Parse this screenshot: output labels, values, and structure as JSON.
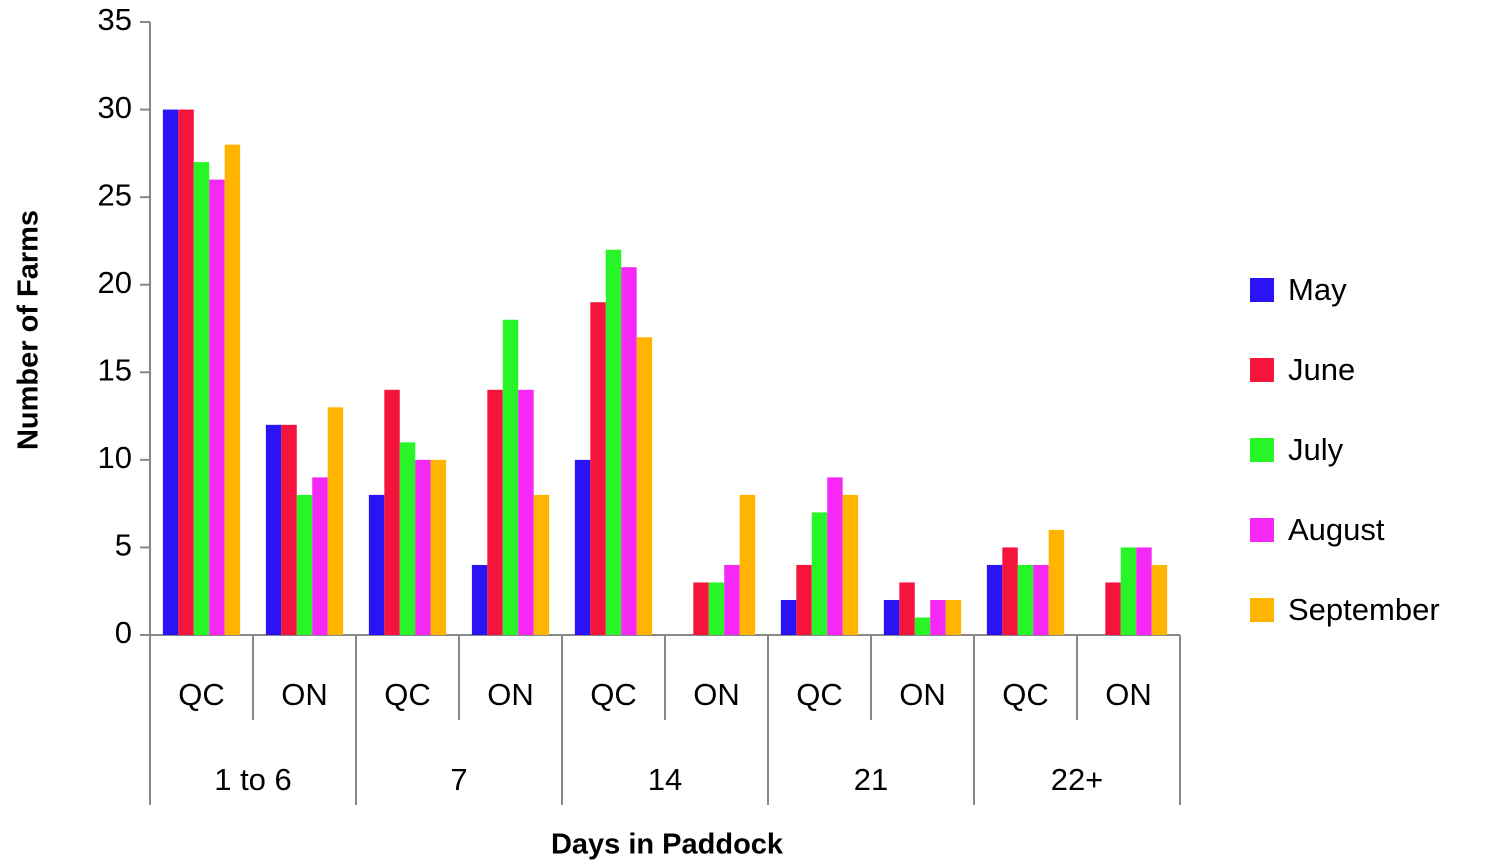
{
  "chart_data": {
    "type": "bar",
    "x_label": "Days  in Paddock",
    "y_label": "Number of Farms",
    "categories": [
      "QC",
      "ON",
      "QC",
      "ON",
      "QC",
      "ON",
      "QC",
      "ON",
      "QC",
      "ON"
    ],
    "groups": [
      "1 to 6",
      "7",
      "14",
      "21",
      "22+"
    ],
    "series": [
      {
        "name": "May",
        "color": "#2a14f5",
        "values": [
          30,
          12,
          8,
          4,
          10,
          0,
          2,
          2,
          4,
          0
        ]
      },
      {
        "name": "June",
        "color": "#f5143c",
        "values": [
          30,
          12,
          14,
          14,
          19,
          3,
          4,
          3,
          5,
          3
        ]
      },
      {
        "name": "July",
        "color": "#28f528",
        "values": [
          27,
          8,
          11,
          18,
          22,
          3,
          7,
          1,
          4,
          5
        ]
      },
      {
        "name": "August",
        "color": "#f528f5",
        "values": [
          26,
          9,
          10,
          14,
          21,
          4,
          9,
          2,
          4,
          5
        ]
      },
      {
        "name": "September",
        "color": "#ffb400",
        "values": [
          28,
          13,
          10,
          8,
          17,
          8,
          8,
          2,
          6,
          4
        ]
      }
    ],
    "ylim": [
      0,
      35
    ],
    "yticks": [
      0,
      5,
      10,
      15,
      20,
      25,
      30,
      35
    ],
    "grid": false,
    "legend": "right"
  }
}
